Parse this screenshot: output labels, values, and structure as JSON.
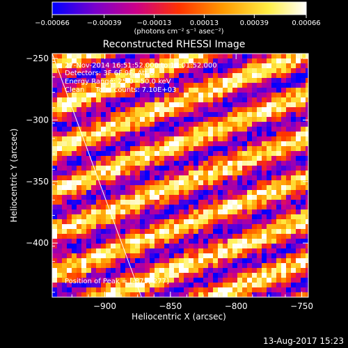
{
  "chart_data": {
    "type": "heatmap",
    "title": "Reconstructed RHESSI Image",
    "xlabel": "Heliocentric X (arcsec)",
    "ylabel": "Heliocentric Y (arcsec)",
    "xlim": [
      -940,
      -745
    ],
    "ylim": [
      -444,
      -246
    ],
    "x_ticks": [
      -900,
      -850,
      -800,
      -750
    ],
    "y_ticks": [
      -250,
      -300,
      -350,
      -400
    ],
    "x_tick_labels": [
      "−900",
      "−850",
      "−800",
      "−750"
    ],
    "y_tick_labels": [
      "−250",
      "−300",
      "−350",
      "−400"
    ],
    "colorbar": {
      "range": [
        -0.00066,
        0.00066
      ],
      "ticks": [
        -0.00066,
        -0.00039,
        -0.00013,
        0.00013,
        0.00039,
        0.00066
      ],
      "tick_labels": [
        "−0.00066",
        "−0.00039",
        "−0.00013",
        "0.00013",
        "0.00039",
        "0.00066"
      ],
      "unit_label": "(photons cm⁻² s⁻¹ asec⁻²)",
      "colors": [
        "#0000ff",
        "#7a00cc",
        "#cc0088",
        "#ff3300",
        "#ff9900",
        "#ffee44",
        "#ffffff"
      ]
    },
    "annotations": [
      "27-Nov-2014 16:51:52.000 to 17:01:52.000",
      "Detectors: 3F 6F 9F, Att 0",
      "Energy Range: 25.0 - 50.0 keV",
      "Clean     Total counts: 7.10E+03"
    ],
    "peak_label": "Position of Peak = [-875,-277]",
    "limb_line": {
      "from": [
        -940,
        -246
      ],
      "to": [
        -872,
        -444
      ]
    },
    "stripe_direction": "diagonal, descending left to right"
  },
  "footer": {
    "timestamp": "13-Aug-2017 15:23"
  }
}
